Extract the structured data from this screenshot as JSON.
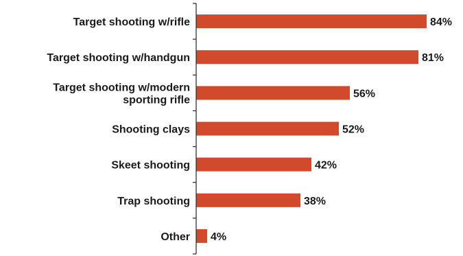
{
  "chart_data": {
    "type": "bar",
    "orientation": "horizontal",
    "categories": [
      [
        "Target shooting w/rifle"
      ],
      [
        "Target shooting w/handgun"
      ],
      [
        "Target shooting w/modern",
        "sporting rifle"
      ],
      [
        "Shooting clays"
      ],
      [
        "Skeet shooting"
      ],
      [
        "Trap shooting"
      ],
      [
        "Other"
      ]
    ],
    "values": [
      84,
      81,
      56,
      52,
      42,
      38,
      4
    ],
    "value_labels": [
      "84%",
      "81%",
      "56%",
      "52%",
      "42%",
      "38%",
      "4%"
    ],
    "unit": "%",
    "xlim": [
      0,
      100
    ],
    "grid": false,
    "legend": "none",
    "bar_color": "#d14a2b",
    "axis_color": "#333333",
    "text_color": "#1a1a1a"
  }
}
